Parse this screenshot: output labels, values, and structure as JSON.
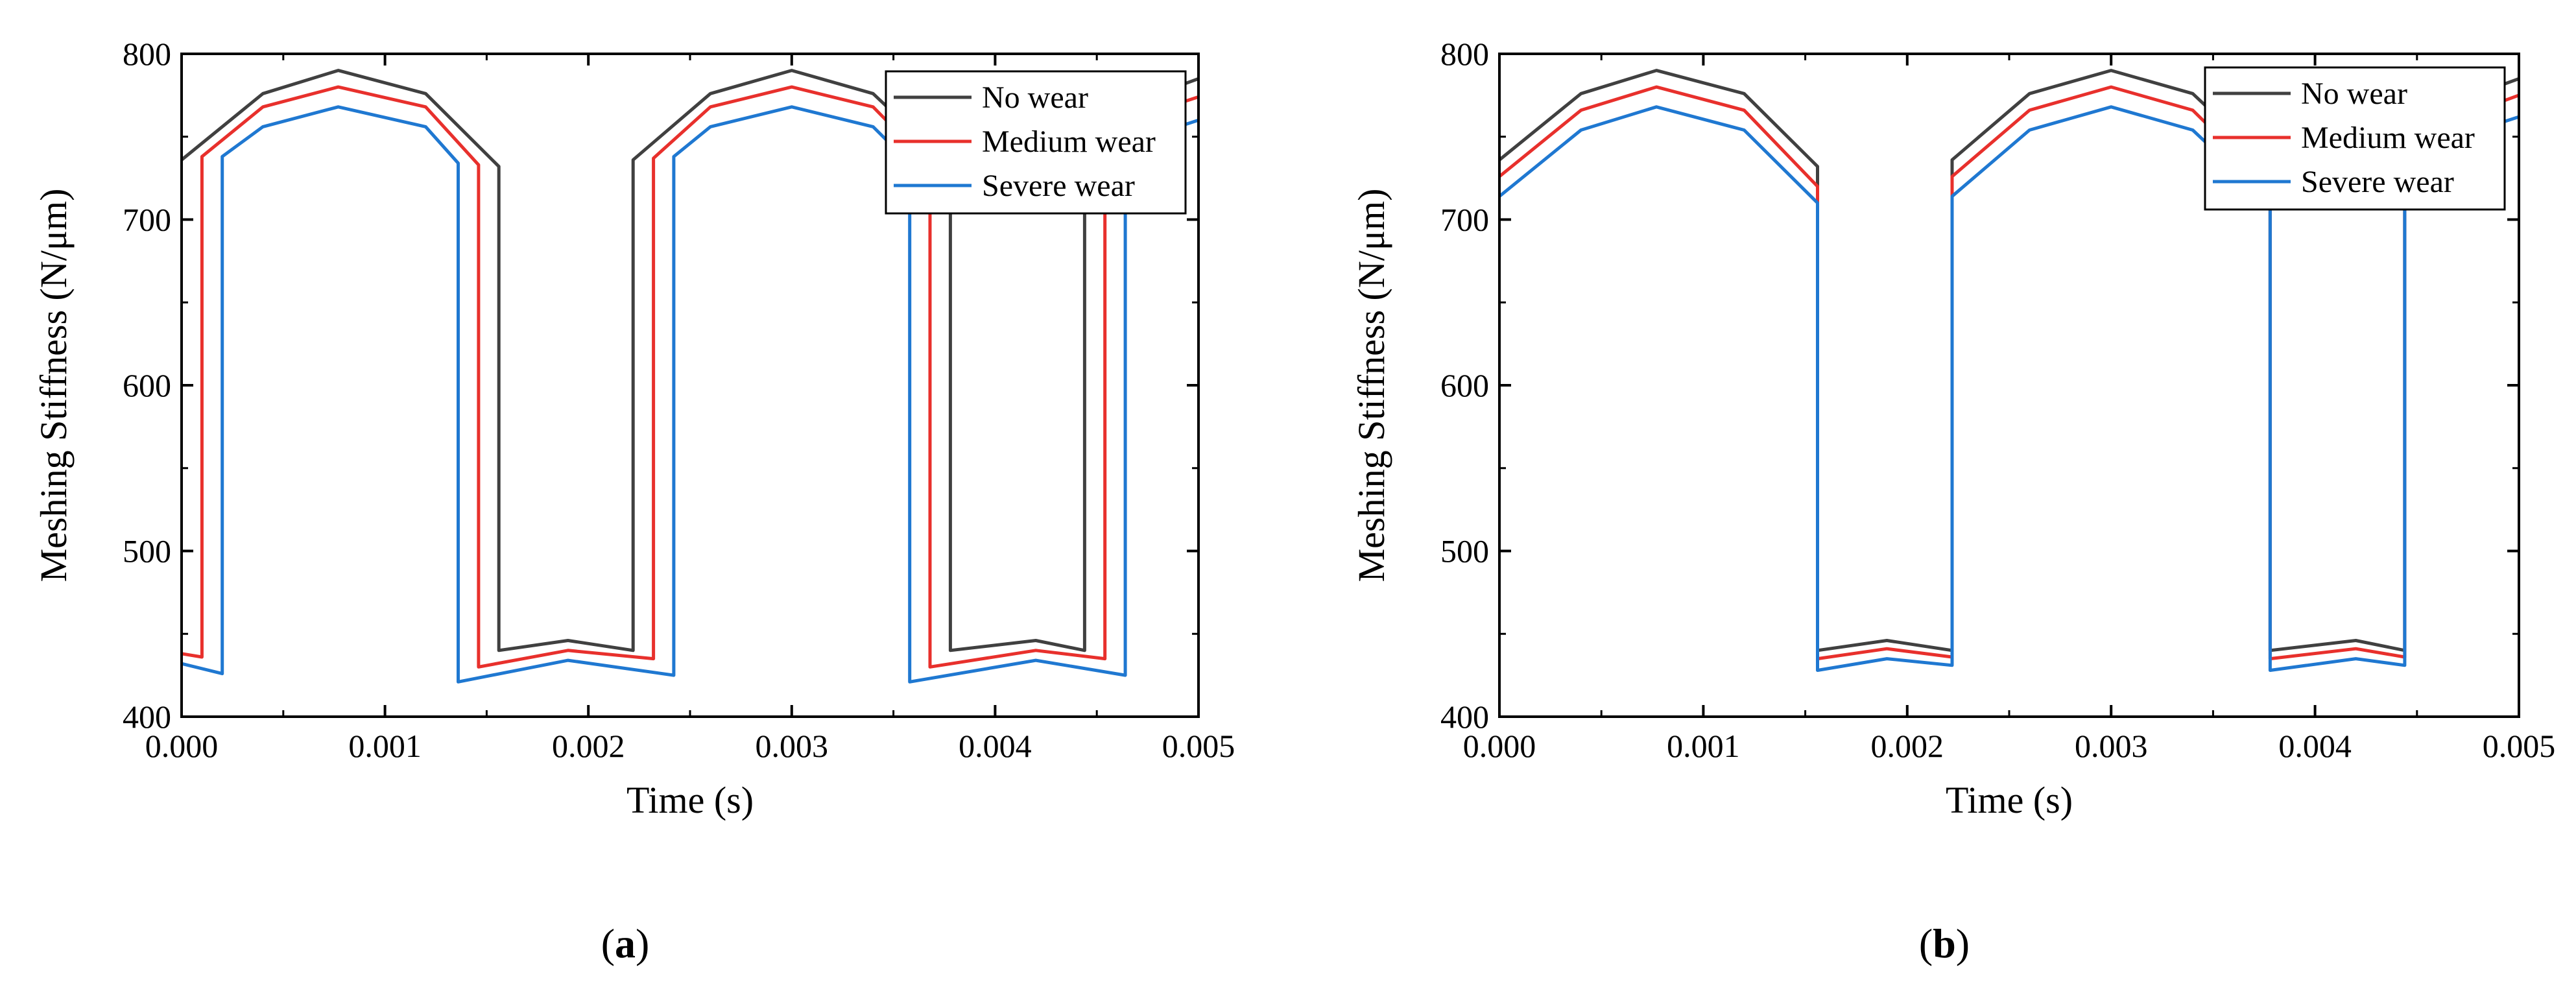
{
  "chart_data": [
    {
      "type": "line",
      "panel_label": "a",
      "xlabel": "Time (s)",
      "ylabel": "Meshing Stiffness (N/μm)",
      "xlim": [
        0.0,
        0.005
      ],
      "ylim": [
        400,
        800
      ],
      "xticks": [
        0.0,
        0.001,
        0.002,
        0.003,
        0.004,
        0.005
      ],
      "xtick_labels": [
        "0.000",
        "0.001",
        "0.002",
        "0.003",
        "0.004",
        "0.005"
      ],
      "yticks": [
        400,
        500,
        600,
        700,
        800
      ],
      "ytick_labels": [
        "400",
        "500",
        "600",
        "700",
        "800"
      ],
      "legend": {
        "placement": "top-right"
      },
      "series": [
        {
          "name": "No wear",
          "color": "#404040",
          "x": [
            0.0,
            0.0004,
            0.00077,
            0.0012,
            0.00156,
            0.00156,
            0.0019,
            0.00222,
            0.00222,
            0.0026,
            0.003,
            0.0034,
            0.00378,
            0.00378,
            0.0042,
            0.00444,
            0.00444,
            0.0048,
            0.005
          ],
          "y": [
            736,
            776,
            790,
            776,
            732,
            440,
            446,
            440,
            736,
            776,
            790,
            776,
            732,
            440,
            446,
            440,
            736,
            776,
            785
          ]
        },
        {
          "name": "Medium wear",
          "color": "#e8302c",
          "x": [
            0.0,
            0.0001,
            0.0001,
            0.0004,
            0.00077,
            0.0012,
            0.00146,
            0.00146,
            0.0019,
            0.00232,
            0.00232,
            0.0026,
            0.003,
            0.0034,
            0.00368,
            0.00368,
            0.0042,
            0.00454,
            0.00454,
            0.0048,
            0.005
          ],
          "y": [
            438,
            436,
            738,
            768,
            780,
            768,
            733,
            430,
            440,
            435,
            737,
            768,
            780,
            768,
            733,
            430,
            440,
            435,
            737,
            766,
            774
          ]
        },
        {
          "name": "Severe wear",
          "color": "#1f78d1",
          "x": [
            0.0,
            0.0002,
            0.0002,
            0.0004,
            0.00077,
            0.0012,
            0.00136,
            0.00136,
            0.0019,
            0.00242,
            0.00242,
            0.0026,
            0.003,
            0.0034,
            0.00358,
            0.00358,
            0.0042,
            0.00464,
            0.00464,
            0.0048,
            0.005
          ],
          "y": [
            432,
            426,
            738,
            756,
            768,
            756,
            734,
            421,
            434,
            425,
            738,
            756,
            768,
            756,
            734,
            421,
            434,
            425,
            738,
            752,
            760
          ]
        }
      ]
    },
    {
      "type": "line",
      "panel_label": "b",
      "xlabel": "Time (s)",
      "ylabel": "Meshing Stiffness (N/μm)",
      "xlim": [
        0.0,
        0.005
      ],
      "ylim": [
        400,
        800
      ],
      "xticks": [
        0.0,
        0.001,
        0.002,
        0.003,
        0.004,
        0.005
      ],
      "xtick_labels": [
        "0.000",
        "0.001",
        "0.002",
        "0.003",
        "0.004",
        "0.005"
      ],
      "yticks": [
        400,
        500,
        600,
        700,
        800
      ],
      "ytick_labels": [
        "400",
        "500",
        "600",
        "700",
        "800"
      ],
      "legend": {
        "placement": "top-right"
      },
      "series": [
        {
          "name": "No wear",
          "color": "#404040",
          "x": [
            0.0,
            0.0004,
            0.00077,
            0.0012,
            0.00156,
            0.00156,
            0.0019,
            0.00222,
            0.00222,
            0.0026,
            0.003,
            0.0034,
            0.00378,
            0.00378,
            0.0042,
            0.00444,
            0.00444,
            0.0048,
            0.005
          ],
          "y": [
            736,
            776,
            790,
            776,
            732,
            440,
            446,
            440,
            736,
            776,
            790,
            776,
            732,
            440,
            446,
            440,
            736,
            776,
            785
          ]
        },
        {
          "name": "Medium wear",
          "color": "#e8302c",
          "x": [
            0.0,
            0.0004,
            0.00077,
            0.0012,
            0.00156,
            0.00156,
            0.0019,
            0.00222,
            0.00222,
            0.0026,
            0.003,
            0.0034,
            0.00378,
            0.00378,
            0.0042,
            0.00444,
            0.00444,
            0.0048,
            0.005
          ],
          "y": [
            726,
            766,
            780,
            766,
            720,
            435,
            441,
            436,
            726,
            766,
            780,
            766,
            720,
            435,
            441,
            436,
            726,
            766,
            775
          ]
        },
        {
          "name": "Severe wear",
          "color": "#1f78d1",
          "x": [
            0.0,
            0.0004,
            0.00077,
            0.0012,
            0.00156,
            0.00156,
            0.0019,
            0.00222,
            0.00222,
            0.0026,
            0.003,
            0.0034,
            0.00378,
            0.00378,
            0.0042,
            0.00444,
            0.00444,
            0.0048,
            0.005
          ],
          "y": [
            714,
            754,
            768,
            754,
            710,
            428,
            435,
            431,
            714,
            754,
            768,
            754,
            710,
            428,
            435,
            431,
            714,
            754,
            762
          ]
        }
      ]
    }
  ]
}
